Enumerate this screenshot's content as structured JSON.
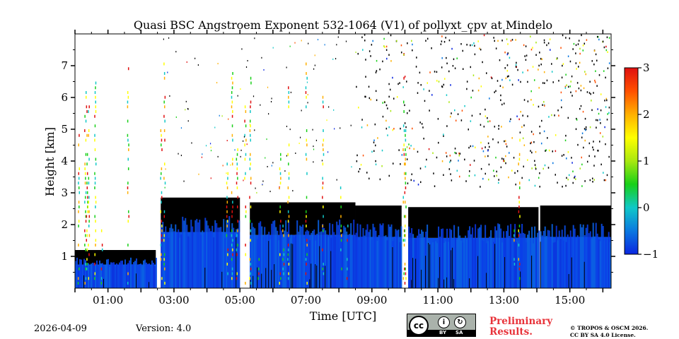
{
  "chart_data": {
    "type": "heatmap",
    "title": "Quasi BSC Angstroem Exponent 532-1064 (V1) of pollyxt_cpv at Mindelo",
    "xlabel": "Time [UTC]",
    "ylabel": "Height [km]",
    "xlim": [
      0,
      16.25
    ],
    "ylim": [
      0,
      8
    ],
    "xticks": [
      1,
      3,
      5,
      7,
      9,
      11,
      13,
      15
    ],
    "xtick_labels": [
      "01:00",
      "03:00",
      "05:00",
      "07:00",
      "09:00",
      "11:00",
      "13:00",
      "15:00"
    ],
    "yticks": [
      1,
      2,
      3,
      4,
      5,
      6,
      7
    ],
    "ytick_labels": [
      "1",
      "2",
      "3",
      "4",
      "5",
      "6",
      "7"
    ],
    "colorbar": {
      "range": [
        -1,
        3
      ],
      "ticks": [
        -1,
        0,
        1,
        2,
        3
      ],
      "tick_labels": [
        "−1",
        "0",
        "1",
        "2",
        "3"
      ],
      "colormap": [
        "#0a26e0",
        "#0a78e0",
        "#10c8c8",
        "#18d018",
        "#a8e810",
        "#ffff00",
        "#ffb000",
        "#ff5000",
        "#e01010"
      ]
    },
    "data_summary": {
      "segments": [
        {
          "t_start": 0.0,
          "t_end": 2.45,
          "cloud_top_km": 1.2,
          "value_near": -1
        },
        {
          "t_start": 2.6,
          "t_end": 5.0,
          "cloud_top_km": 2.85,
          "value_near": -1
        },
        {
          "t_start": 5.3,
          "t_end": 8.5,
          "cloud_top_km": 2.7,
          "value_near": -1
        },
        {
          "t_start": 8.5,
          "t_end": 9.9,
          "cloud_top_km": 2.6,
          "value_near": -1
        },
        {
          "t_start": 10.1,
          "t_end": 14.05,
          "cloud_top_km": 2.55,
          "value_near": -1
        },
        {
          "t_start": 14.1,
          "t_end": 16.25,
          "cloud_top_km": 2.6,
          "value_near": -1
        }
      ],
      "noise_region": "scattered values above 4 km, mostly after 09:00 UTC"
    }
  },
  "footer": {
    "date": "2026-04-09",
    "version": "Version: 4.0",
    "preliminary_line1": "Preliminary",
    "preliminary_line2": "Results.",
    "copyright_line1": "© TROPOS & OSCM 2026.",
    "copyright_line2": "CC BY SA 4.0 License.",
    "license_badge": {
      "cc": "cc",
      "by": "BY",
      "sa": "SA"
    }
  }
}
